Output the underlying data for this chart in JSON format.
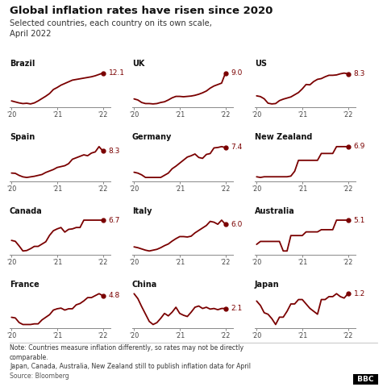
{
  "title": "Global inflation rates have risen since 2020",
  "subtitle": "Selected countries, each country on its own scale,\nApril 2022",
  "note": "Note: Countries measure inflation differently, so rates may not be directly\ncomparable.\nJapan, Canada, Australia, New Zealand still to publish inflation data for April",
  "source": "Source: Bloomberg",
  "line_color": "#7a0000",
  "bg_color": "#ffffff",
  "countries": [
    {
      "name": "Brazil",
      "end_val": "12.1",
      "row": 0,
      "col": 0,
      "y": [
        3.8,
        3.5,
        3.2,
        3.0,
        3.1,
        2.9,
        3.2,
        3.8,
        4.5,
        5.2,
        6.0,
        7.2,
        7.8,
        8.5,
        9.0,
        9.5,
        10.0,
        10.2,
        10.4,
        10.6,
        10.8,
        11.0,
        11.3,
        11.7,
        12.1
      ]
    },
    {
      "name": "UK",
      "end_val": "9.0",
      "row": 0,
      "col": 1,
      "y": [
        1.8,
        1.5,
        0.8,
        0.5,
        0.5,
        0.4,
        0.5,
        0.8,
        1.0,
        1.5,
        2.1,
        2.5,
        2.5,
        2.4,
        2.5,
        2.6,
        2.8,
        3.1,
        3.5,
        4.0,
        4.8,
        5.4,
        5.8,
        6.2,
        9.0
      ]
    },
    {
      "name": "US",
      "end_val": "8.3",
      "row": 0,
      "col": 2,
      "y": [
        2.3,
        2.1,
        1.5,
        0.3,
        0.1,
        0.2,
        1.0,
        1.4,
        1.7,
        2.0,
        2.6,
        3.2,
        4.2,
        5.4,
        5.3,
        6.2,
        6.8,
        7.0,
        7.5,
        7.9,
        7.9,
        8.0,
        8.3,
        8.5,
        8.3
      ]
    },
    {
      "name": "Spain",
      "end_val": "8.3",
      "row": 1,
      "col": 0,
      "y": [
        0.8,
        0.7,
        0.0,
        -0.5,
        -0.7,
        -0.5,
        -0.3,
        0.0,
        0.3,
        1.0,
        1.5,
        2.0,
        2.7,
        3.0,
        3.3,
        4.0,
        5.5,
        6.0,
        6.5,
        7.0,
        6.7,
        7.6,
        8.0,
        9.8,
        8.3
      ]
    },
    {
      "name": "Germany",
      "end_val": "7.4",
      "row": 1,
      "col": 1,
      "y": [
        1.7,
        1.5,
        1.1,
        0.5,
        0.5,
        0.5,
        0.5,
        0.5,
        1.0,
        1.5,
        2.5,
        3.1,
        3.8,
        4.5,
        5.2,
        5.5,
        5.9,
        5.1,
        4.9,
        5.8,
        6.0,
        7.3,
        7.4,
        7.6,
        7.4
      ]
    },
    {
      "name": "New Zealand",
      "end_val": "6.9",
      "row": 1,
      "col": 2,
      "y": [
        2.5,
        2.4,
        2.5,
        2.5,
        2.5,
        2.5,
        2.5,
        2.5,
        2.5,
        2.6,
        3.3,
        4.9,
        4.9,
        4.9,
        4.9,
        4.9,
        4.9,
        5.9,
        5.9,
        5.9,
        5.9,
        6.9,
        6.9,
        6.9,
        6.9
      ]
    },
    {
      "name": "Canada",
      "end_val": "6.7",
      "row": 2,
      "col": 0,
      "y": [
        2.3,
        2.1,
        1.1,
        0.0,
        0.1,
        0.5,
        1.0,
        1.0,
        1.5,
        2.0,
        3.4,
        4.4,
        4.8,
        5.1,
        4.1,
        4.7,
        4.8,
        5.1,
        5.1,
        6.7,
        6.7,
        6.7,
        6.7,
        6.7,
        6.7
      ]
    },
    {
      "name": "Italy",
      "end_val": "6.0",
      "row": 2,
      "col": 1,
      "y": [
        0.5,
        0.3,
        0.0,
        -0.3,
        -0.5,
        -0.3,
        -0.1,
        0.3,
        0.8,
        1.2,
        1.9,
        2.5,
        3.0,
        3.0,
        2.9,
        3.1,
        3.9,
        4.5,
        5.1,
        5.7,
        6.7,
        6.5,
        6.0,
        7.0,
        6.0
      ]
    },
    {
      "name": "Australia",
      "end_val": "5.1",
      "row": 2,
      "col": 2,
      "y": [
        1.8,
        2.2,
        2.2,
        2.2,
        2.2,
        2.2,
        2.2,
        0.9,
        0.9,
        3.0,
        3.0,
        3.0,
        3.0,
        3.5,
        3.5,
        3.5,
        3.5,
        3.8,
        3.8,
        3.8,
        3.8,
        5.1,
        5.1,
        5.1,
        5.1
      ]
    },
    {
      "name": "France",
      "end_val": "4.8",
      "row": 3,
      "col": 0,
      "y": [
        1.5,
        1.4,
        0.7,
        0.4,
        0.4,
        0.4,
        0.5,
        0.5,
        1.1,
        1.5,
        1.9,
        2.6,
        2.8,
        2.9,
        2.6,
        2.8,
        2.8,
        3.4,
        3.6,
        4.0,
        4.5,
        4.5,
        4.8,
        5.1,
        4.8
      ]
    },
    {
      "name": "China",
      "end_val": "2.1",
      "row": 3,
      "col": 1,
      "y": [
        4.5,
        3.7,
        2.4,
        1.2,
        0.0,
        -0.5,
        -0.2,
        0.5,
        1.3,
        0.9,
        1.5,
        2.3,
        1.3,
        1.0,
        0.8,
        1.5,
        2.3,
        2.5,
        2.1,
        2.3,
        2.0,
        2.1,
        1.9,
        2.1,
        2.1
      ]
    },
    {
      "name": "Japan",
      "end_val": "1.2",
      "row": 3,
      "col": 2,
      "y": [
        0.7,
        0.4,
        -0.1,
        -0.2,
        -0.5,
        -0.9,
        -0.4,
        -0.4,
        0.0,
        0.5,
        0.5,
        0.8,
        0.8,
        0.5,
        0.2,
        0.0,
        -0.2,
        0.8,
        0.8,
        1.0,
        1.0,
        1.2,
        1.0,
        0.9,
        1.2
      ]
    }
  ]
}
